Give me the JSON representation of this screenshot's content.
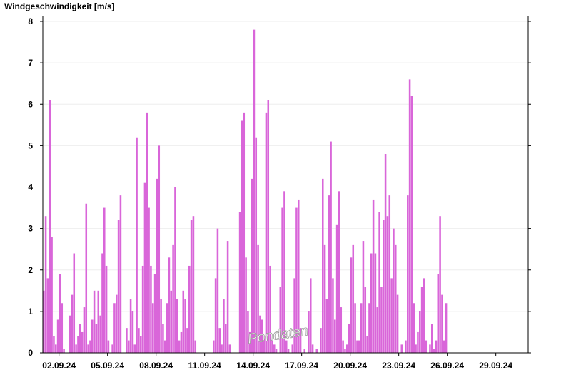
{
  "chart_data": {
    "type": "bar",
    "title": "Windgeschwindigkeit [m/s]",
    "xlabel": "",
    "ylabel": "",
    "ylim": [
      0,
      8
    ],
    "yticks": [
      0,
      1,
      2,
      3,
      4,
      5,
      6,
      7,
      8
    ],
    "xrange": [
      "01.09.24 00:00",
      "01.10.24 00:00"
    ],
    "xticks": [
      "02.09.24",
      "05.09.24",
      "08.09.24",
      "11.09.24",
      "14.09.24",
      "17.09.24",
      "20.09.24",
      "23.09.24",
      "26.09.24",
      "29.09.24"
    ],
    "grid": true,
    "color": "#d966d9",
    "watermark": "Pondaten",
    "series": [
      {
        "resolution_hours": 3,
        "values": [
          1.5,
          3.3,
          1.8,
          6.1,
          2.8,
          0.4,
          0.2,
          0.8,
          1.9,
          1.2,
          0.1,
          0.0,
          0.0,
          0.9,
          1.4,
          2.4,
          0.2,
          0.4,
          0.7,
          0.5,
          1.1,
          3.6,
          0.2,
          0.3,
          0.8,
          1.5,
          0.7,
          1.5,
          0.9,
          2.4,
          3.5,
          2.1,
          0.3,
          0.0,
          0.2,
          1.2,
          1.4,
          3.2,
          3.8,
          0.0,
          0.0,
          0.6,
          0.3,
          1.3,
          1.0,
          0.2,
          5.2,
          0.6,
          0.4,
          2.1,
          4.1,
          5.8,
          3.5,
          2.1,
          1.2,
          1.9,
          4.2,
          5.0,
          1.3,
          0.7,
          0.3,
          1.2,
          2.3,
          1.5,
          2.6,
          4.0,
          1.3,
          0.3,
          0.5,
          1.5,
          1.3,
          0.6,
          2.1,
          3.2,
          3.3,
          0.3,
          0.0,
          0.0,
          0.0,
          0.0,
          0.0,
          0.0,
          0.0,
          0.0,
          0.3,
          1.8,
          3.0,
          0.6,
          0.2,
          1.3,
          0.7,
          2.7,
          0.2,
          0.0,
          0.0,
          0.0,
          0.0,
          3.4,
          5.6,
          5.8,
          2.3,
          1.0,
          0.5,
          4.2,
          7.8,
          5.2,
          2.6,
          0.9,
          0.8,
          0.4,
          5.8,
          6.1,
          2.1,
          0.3,
          0.2,
          0.1,
          0.0,
          1.6,
          3.5,
          3.9,
          0.3,
          0.1,
          0.0,
          0.2,
          1.8,
          3.5,
          3.7,
          0.6,
          0.0,
          0.1,
          0.0,
          1.0,
          1.8,
          0.2,
          0.0,
          0.1,
          0.0,
          0.6,
          4.2,
          2.6,
          1.3,
          3.8,
          5.1,
          1.8,
          0.8,
          3.1,
          3.9,
          1.1,
          0.3,
          0.1,
          0.2,
          0.7,
          2.3,
          2.6,
          1.2,
          0.3,
          0.3,
          1.2,
          2.7,
          1.6,
          0.4,
          1.2,
          2.4,
          3.7,
          2.4,
          1.1,
          3.4,
          1.6,
          3.2,
          4.8,
          3.3,
          3.8,
          1.8,
          3.0,
          2.6,
          1.4,
          0.0,
          0.2,
          0.0,
          0.3,
          3.8,
          6.6,
          6.2,
          1.2,
          0.2,
          0.5,
          1.0,
          1.6,
          1.8,
          0.3,
          0.0,
          0.2,
          0.7,
          0.1,
          0.3,
          1.9,
          3.3,
          1.4,
          0.3,
          1.2
        ]
      }
    ]
  }
}
